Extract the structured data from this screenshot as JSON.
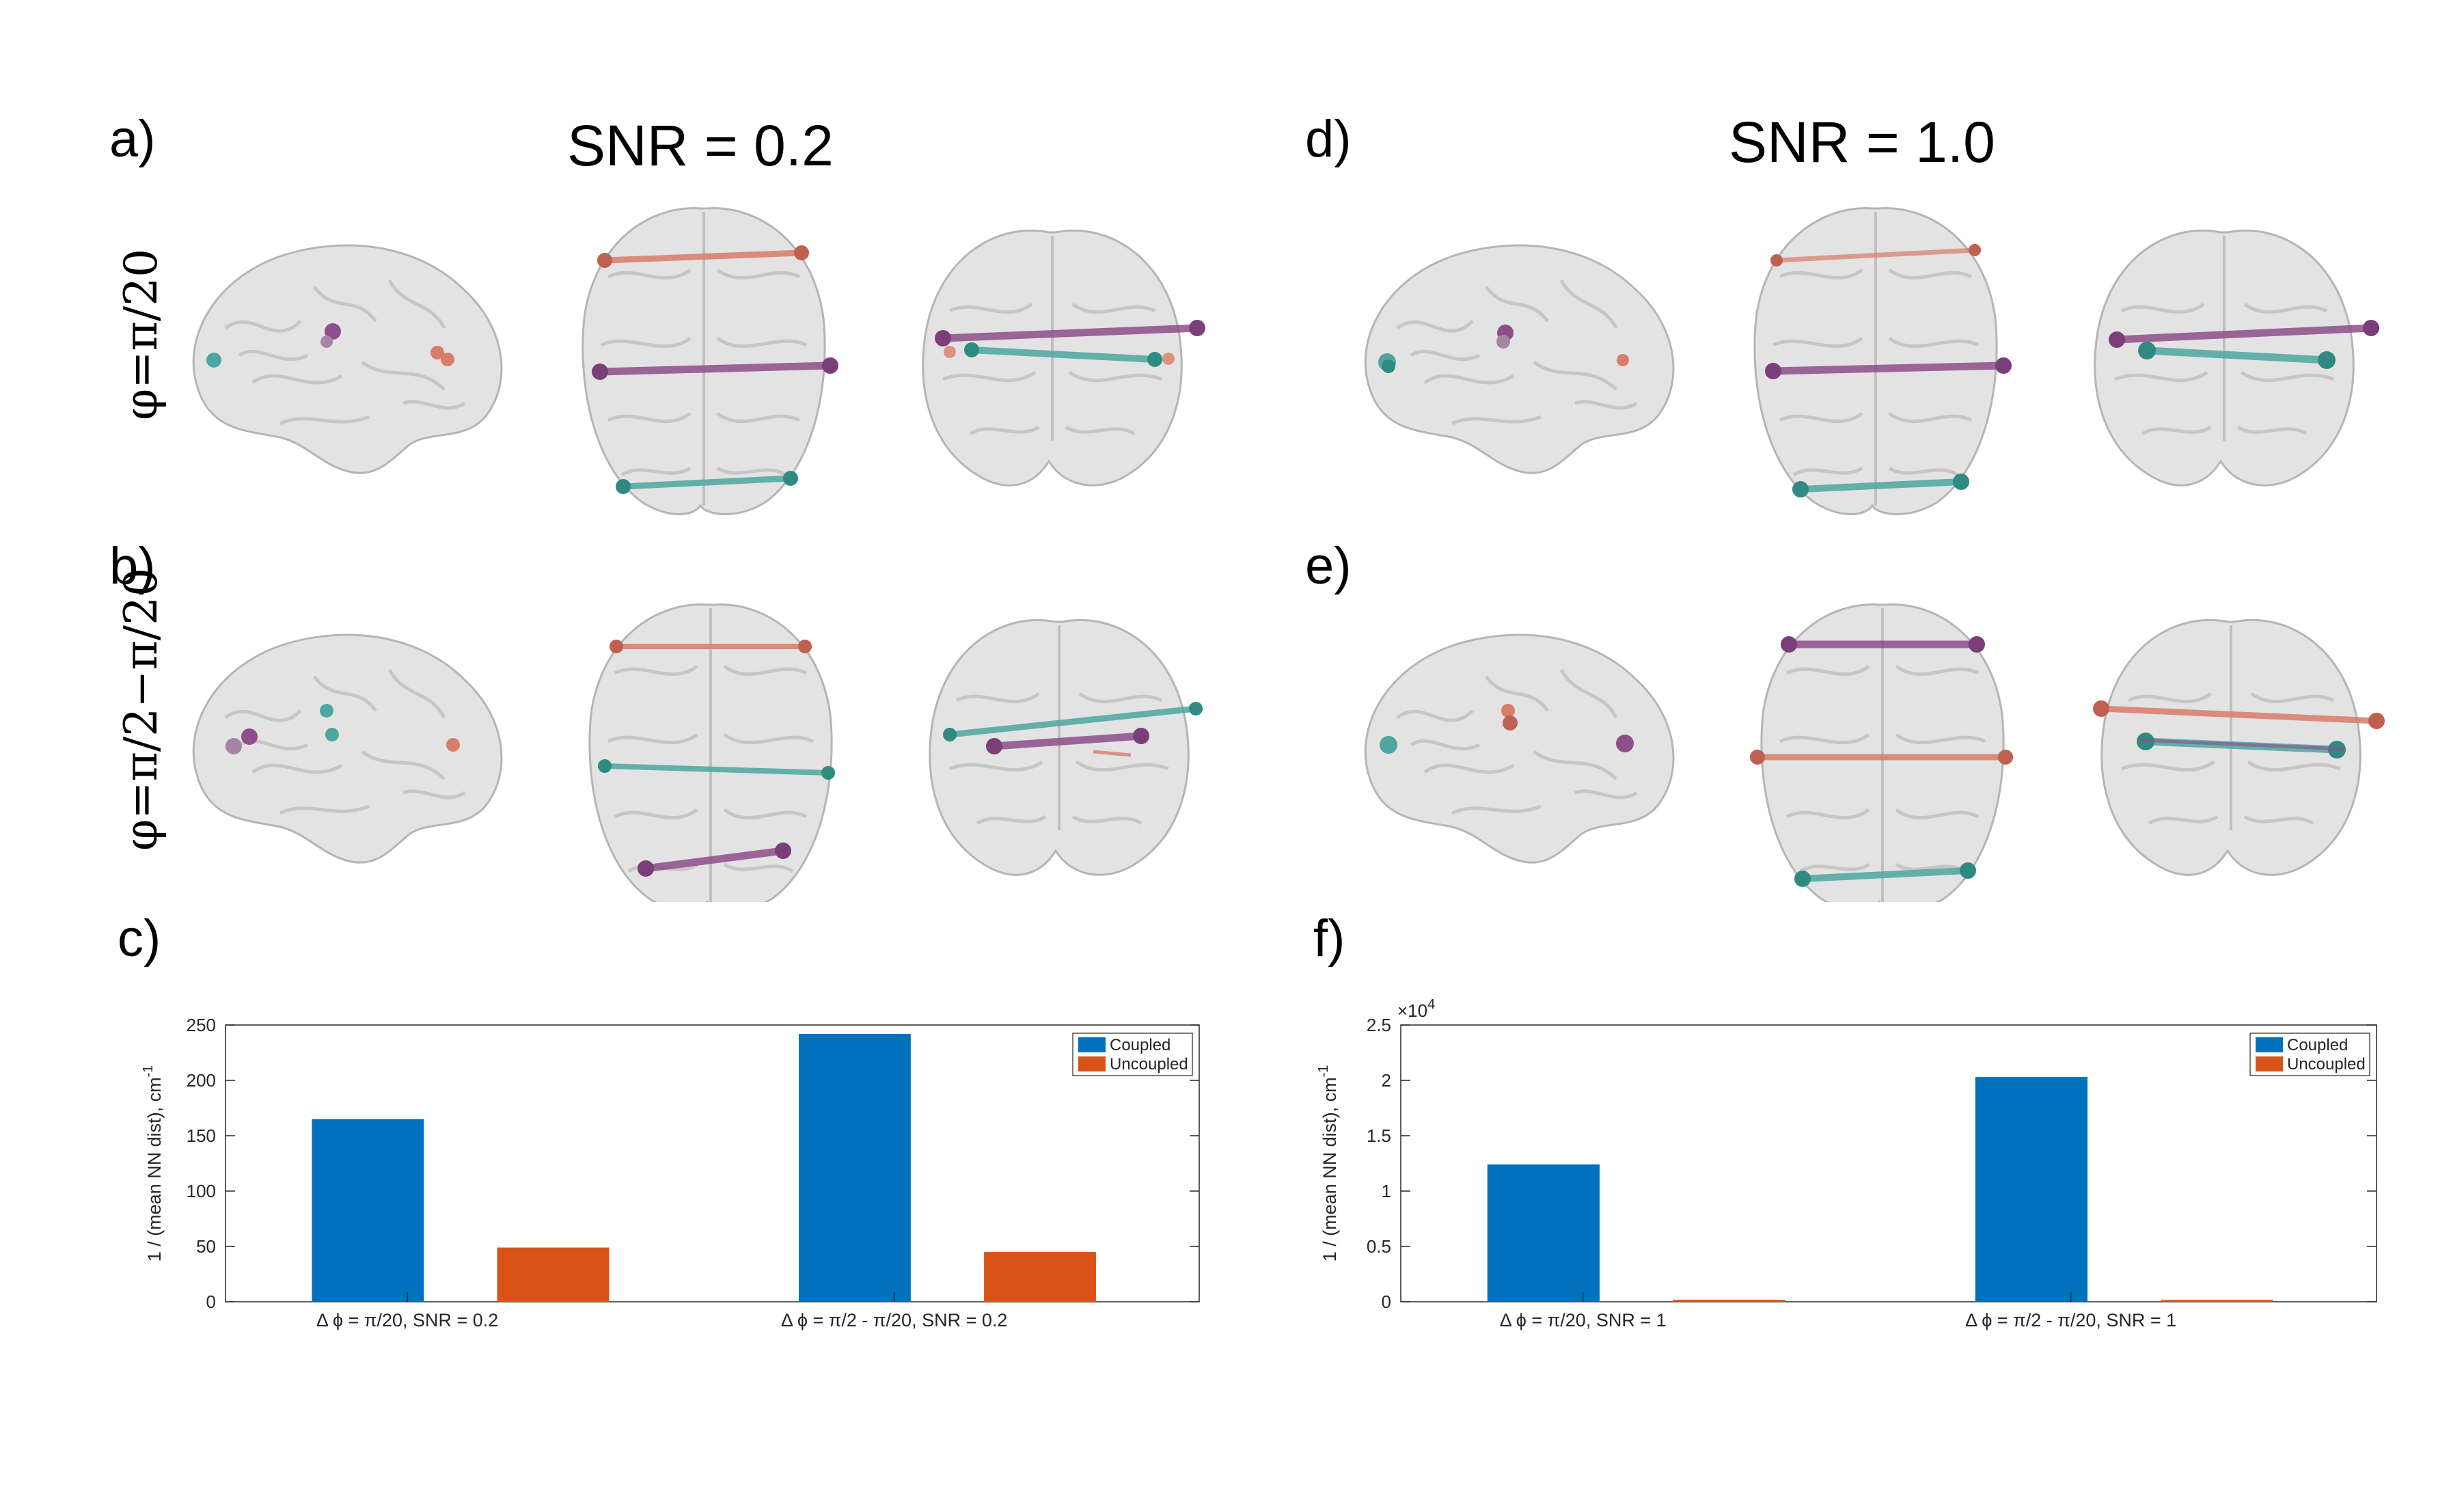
{
  "panels": {
    "a": "a)",
    "b": "b)",
    "c": "c)",
    "d": "d)",
    "e": "e)",
    "f": "f)"
  },
  "titles": {
    "left": "SNR = 0.2",
    "right": "SNR = 1.0"
  },
  "row_labels": {
    "top": "φ=π/20",
    "bottom": "φ=π/2−π/20"
  },
  "colors": {
    "coupled": "#0072BD",
    "uncoupled": "#D95319",
    "salmon": "#D97C6A",
    "purple": "#8E4E8A",
    "teal": "#4DA7A0",
    "brain_fill": "#E3E3E3",
    "brain_stroke": "#B5B5B5"
  },
  "chart_data": [
    {
      "type": "bar",
      "panel": "c)",
      "categories": [
        "Δ ϕ = π/20, SNR = 0.2",
        "Δ ϕ = π/2 - π/20, SNR = 0.2"
      ],
      "series": [
        {
          "name": "Coupled",
          "values": [
            165,
            242
          ]
        },
        {
          "name": "Uncoupled",
          "values": [
            49,
            45
          ]
        }
      ],
      "ylabel": "1 / (mean NN dist), cm",
      "ylabel_exponent": "-1",
      "ylim": [
        0,
        250
      ],
      "yticks": [
        0,
        50,
        100,
        150,
        200,
        250
      ],
      "ytick_labels": [
        "0",
        "50",
        "100",
        "150",
        "200",
        "250"
      ],
      "exponent_label": "",
      "legend_position": "top-right"
    },
    {
      "type": "bar",
      "panel": "f)",
      "categories": [
        "Δ ϕ = π/20, SNR = 1",
        "Δ ϕ = π/2 - π/20, SNR = 1"
      ],
      "series": [
        {
          "name": "Coupled",
          "values": [
            12400,
            20300
          ]
        },
        {
          "name": "Uncoupled",
          "values": [
            180,
            170
          ]
        }
      ],
      "ylabel": "1 / (mean NN dist), cm",
      "ylabel_exponent": "-1",
      "ylim": [
        0,
        25000
      ],
      "yticks": [
        0,
        5000,
        10000,
        15000,
        20000,
        25000
      ],
      "ytick_labels": [
        "0",
        "0.5",
        "1",
        "1.5",
        "2",
        "2.5"
      ],
      "exponent_label": "×10",
      "exponent_power": "4",
      "legend_position": "top-right"
    }
  ]
}
